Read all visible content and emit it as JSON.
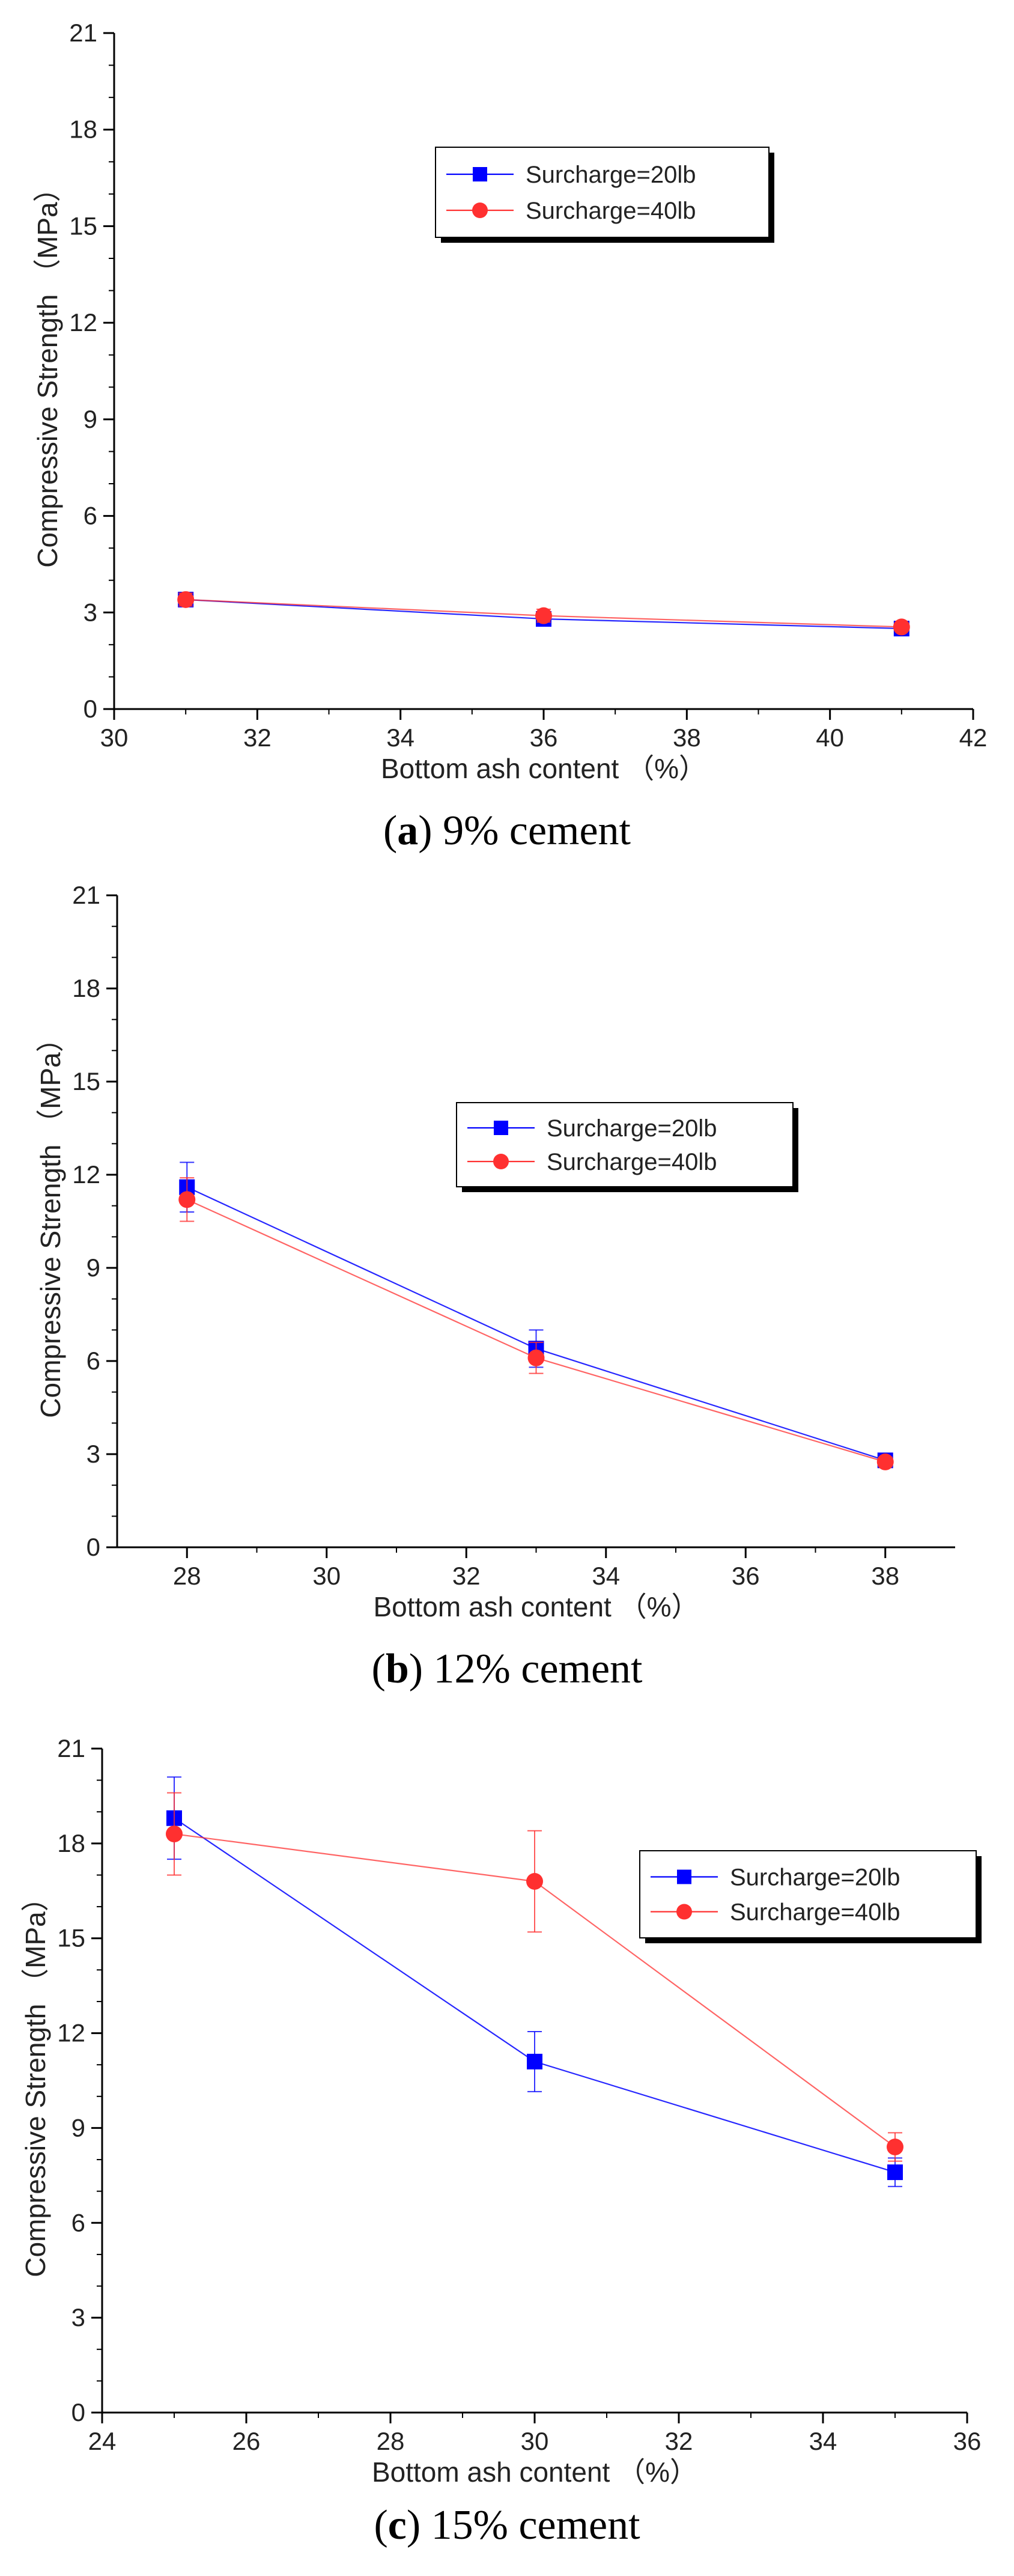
{
  "chart_data": [
    {
      "type": "line",
      "caption_letter": "a",
      "caption_rest": ") 9% cement",
      "caption_open": "(",
      "xlabel": "Bottom ash content （%）",
      "ylabel": "Compressive Strength （MPa）",
      "xlim": [
        30,
        42
      ],
      "ylim": [
        0,
        21
      ],
      "xticks": [
        "30",
        "32",
        "34",
        "36",
        "38",
        "40",
        "42"
      ],
      "yticks": [
        "0",
        "3",
        "6",
        "9",
        "12",
        "15",
        "18",
        "21"
      ],
      "legend_position": "top-center",
      "series": [
        {
          "name": "Surcharge=20lb",
          "color": "#0000ff",
          "marker": "square",
          "x": [
            31,
            36,
            41
          ],
          "y": [
            3.4,
            2.8,
            2.5
          ],
          "err": [
            0.15,
            0.15,
            0.1
          ]
        },
        {
          "name": "Surcharge=40lb",
          "color": "#ff3030",
          "marker": "circle",
          "x": [
            31,
            36,
            41
          ],
          "y": [
            3.4,
            2.9,
            2.55
          ],
          "err": [
            0.2,
            0.2,
            0.1
          ]
        }
      ]
    },
    {
      "type": "line",
      "caption_letter": "b",
      "caption_rest": ") 12% cement",
      "caption_open": "(",
      "xlabel": "Bottom ash content （%）",
      "ylabel": "Compressive Strength （MPa）",
      "xlim": [
        27,
        39
      ],
      "ylim": [
        0,
        21
      ],
      "xticks": [
        "28",
        "30",
        "32",
        "34",
        "36",
        "38"
      ],
      "yticks": [
        "0",
        "3",
        "6",
        "9",
        "12",
        "15",
        "18",
        "21"
      ],
      "legend_position": "top-center",
      "series": [
        {
          "name": "Surcharge=20lb",
          "color": "#0000ff",
          "marker": "square",
          "x": [
            28,
            33,
            38
          ],
          "y": [
            11.6,
            6.4,
            2.8
          ],
          "err": [
            0.8,
            0.6,
            0.15
          ]
        },
        {
          "name": "Surcharge=40lb",
          "color": "#ff3030",
          "marker": "circle",
          "x": [
            28,
            33,
            38
          ],
          "y": [
            11.2,
            6.1,
            2.75
          ],
          "err": [
            0.7,
            0.5,
            0.15
          ]
        }
      ]
    },
    {
      "type": "line",
      "caption_letter": "c",
      "caption_rest": ") 15% cement",
      "caption_open": "(",
      "xlabel": "Bottom ash content （%）",
      "ylabel": "Compressive Strength （MPa）",
      "xlim": [
        24,
        36
      ],
      "ylim": [
        0,
        21
      ],
      "xticks": [
        "24",
        "26",
        "28",
        "30",
        "32",
        "34",
        "36"
      ],
      "yticks": [
        "0",
        "3",
        "6",
        "9",
        "12",
        "15",
        "18",
        "21"
      ],
      "legend_position": "top-right",
      "series": [
        {
          "name": "Surcharge=20lb",
          "color": "#0000ff",
          "marker": "square",
          "x": [
            25,
            30,
            35
          ],
          "y": [
            18.8,
            11.1,
            7.6
          ],
          "err": [
            1.3,
            0.95,
            0.45
          ]
        },
        {
          "name": "Surcharge=40lb",
          "color": "#ff3030",
          "marker": "circle",
          "x": [
            25,
            30,
            35
          ],
          "y": [
            18.3,
            16.8,
            8.4
          ],
          "err": [
            1.3,
            1.6,
            0.45
          ]
        }
      ]
    }
  ]
}
